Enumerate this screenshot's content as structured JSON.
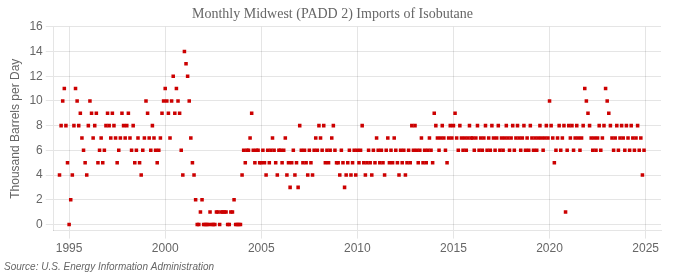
{
  "chart_data": {
    "type": "scatter",
    "title": "Monthly Midwest (PADD 2) Imports of Isobutane",
    "ylabel": "Thousand Barrels per Day",
    "annotation": "Source: U.S. Energy Information Administration",
    "color": "#cc0000",
    "marker": "square",
    "grid": true,
    "xlim": [
      1994.2,
      2025.8
    ],
    "ylim": [
      -0.5,
      16
    ],
    "xticks": [
      1995,
      2000,
      2005,
      2010,
      2015,
      2020,
      2025
    ],
    "yticks": [
      0,
      2,
      4,
      6,
      8,
      10,
      12,
      14,
      16
    ],
    "x": [
      1994.5,
      1994.5833,
      1994.6667,
      1994.75,
      1994.8333,
      1994.9167,
      1995,
      1995.0833,
      1995.1667,
      1995.25,
      1995.3333,
      1995.4167,
      1995.5,
      1995.5833,
      1995.6667,
      1995.75,
      1995.8333,
      1995.9167,
      1996,
      1996.0833,
      1996.1667,
      1996.25,
      1996.3333,
      1996.4167,
      1996.5,
      1996.5833,
      1996.6667,
      1996.75,
      1996.8333,
      1996.9167,
      1997,
      1997.0833,
      1997.1667,
      1997.25,
      1997.3333,
      1997.4167,
      1997.5,
      1997.5833,
      1997.6667,
      1997.75,
      1997.8333,
      1997.9167,
      1998,
      1998.0833,
      1998.1667,
      1998.25,
      1998.3333,
      1998.4167,
      1998.5,
      1998.5833,
      1998.6667,
      1998.75,
      1998.8333,
      1998.9167,
      1999,
      1999.0833,
      1999.1667,
      1999.25,
      1999.3333,
      1999.4167,
      1999.5,
      1999.5833,
      1999.6667,
      1999.75,
      1999.8333,
      1999.9167,
      2000,
      2000.0833,
      2000.1667,
      2000.25,
      2000.3333,
      2000.4167,
      2000.5,
      2000.5833,
      2000.6667,
      2000.75,
      2000.8333,
      2000.9167,
      2001,
      2001.0833,
      2001.1667,
      2001.25,
      2001.3333,
      2001.4167,
      2001.5,
      2001.5833,
      2001.6667,
      2001.75,
      2001.8333,
      2001.9167,
      2002,
      2002.0833,
      2002.1667,
      2002.25,
      2002.3333,
      2002.4167,
      2002.5,
      2002.5833,
      2002.6667,
      2002.75,
      2002.8333,
      2002.9167,
      2003,
      2003.0833,
      2003.1667,
      2003.25,
      2003.3333,
      2003.4167,
      2003.5,
      2003.5833,
      2003.6667,
      2003.75,
      2003.8333,
      2003.9167,
      2004,
      2004.0833,
      2004.1667,
      2004.25,
      2004.3333,
      2004.4167,
      2004.5,
      2004.5833,
      2004.6667,
      2004.75,
      2004.8333,
      2004.9167,
      2005,
      2005.0833,
      2005.1667,
      2005.25,
      2005.3333,
      2005.4167,
      2005.5,
      2005.5833,
      2005.6667,
      2005.75,
      2005.8333,
      2005.9167,
      2006,
      2006.0833,
      2006.1667,
      2006.25,
      2006.3333,
      2006.4167,
      2006.5,
      2006.5833,
      2006.6667,
      2006.75,
      2006.8333,
      2006.9167,
      2007,
      2007.0833,
      2007.1667,
      2007.25,
      2007.3333,
      2007.4167,
      2007.5,
      2007.5833,
      2007.6667,
      2007.75,
      2007.8333,
      2007.9167,
      2008,
      2008.0833,
      2008.1667,
      2008.25,
      2008.3333,
      2008.4167,
      2008.5,
      2008.5833,
      2008.6667,
      2008.75,
      2008.8333,
      2008.9167,
      2009,
      2009.0833,
      2009.1667,
      2009.25,
      2009.3333,
      2009.4167,
      2009.5,
      2009.5833,
      2009.6667,
      2009.75,
      2009.8333,
      2009.9167,
      2010,
      2010.0833,
      2010.1667,
      2010.25,
      2010.3333,
      2010.4167,
      2010.5,
      2010.5833,
      2010.6667,
      2010.75,
      2010.8333,
      2010.9167,
      2011,
      2011.0833,
      2011.1667,
      2011.25,
      2011.3333,
      2011.4167,
      2011.5,
      2011.5833,
      2011.6667,
      2011.75,
      2011.8333,
      2011.9167,
      2012,
      2012.0833,
      2012.1667,
      2012.25,
      2012.3333,
      2012.4167,
      2012.5,
      2012.5833,
      2012.6667,
      2012.75,
      2012.8333,
      2012.9167,
      2013,
      2013.0833,
      2013.1667,
      2013.25,
      2013.3333,
      2013.4167,
      2013.5,
      2013.5833,
      2013.6667,
      2013.75,
      2013.8333,
      2013.9167,
      2014,
      2014.0833,
      2014.1667,
      2014.25,
      2014.3333,
      2014.4167,
      2014.5,
      2014.5833,
      2014.6667,
      2014.75,
      2014.8333,
      2014.9167,
      2015,
      2015.0833,
      2015.1667,
      2015.25,
      2015.3333,
      2015.4167,
      2015.5,
      2015.5833,
      2015.6667,
      2015.75,
      2015.8333,
      2015.9167,
      2016,
      2016.0833,
      2016.1667,
      2016.25,
      2016.3333,
      2016.4167,
      2016.5,
      2016.5833,
      2016.6667,
      2016.75,
      2016.8333,
      2016.9167,
      2017,
      2017.0833,
      2017.1667,
      2017.25,
      2017.3333,
      2017.4167,
      2017.5,
      2017.5833,
      2017.6667,
      2017.75,
      2017.8333,
      2017.9167,
      2018,
      2018.0833,
      2018.1667,
      2018.25,
      2018.3333,
      2018.4167,
      2018.5,
      2018.5833,
      2018.6667,
      2018.75,
      2018.8333,
      2018.9167,
      2019,
      2019.0833,
      2019.1667,
      2019.25,
      2019.3333,
      2019.4167,
      2019.5,
      2019.5833,
      2019.6667,
      2019.75,
      2019.8333,
      2019.9167,
      2020,
      2020.0833,
      2020.1667,
      2020.25,
      2020.3333,
      2020.4167,
      2020.5,
      2020.5833,
      2020.6667,
      2020.75,
      2020.8333,
      2020.9167,
      2021,
      2021.0833,
      2021.1667,
      2021.25,
      2021.3333,
      2021.4167,
      2021.5,
      2021.5833,
      2021.6667,
      2021.75,
      2021.8333,
      2021.9167,
      2022,
      2022.0833,
      2022.1667,
      2022.25,
      2022.3333,
      2022.4167,
      2022.5,
      2022.5833,
      2022.6667,
      2022.75,
      2022.8333,
      2022.9167,
      2023,
      2023.0833,
      2023.1667,
      2023.25,
      2023.3333,
      2023.4167,
      2023.5,
      2023.5833,
      2023.6667,
      2023.75,
      2023.8333,
      2023.9167,
      2024,
      2024.0833,
      2024.1667,
      2024.25,
      2024.3333,
      2024.4167,
      2024.5,
      2024.5833,
      2024.6667,
      2024.75,
      2024.8333,
      2024.9167
    ],
    "values": [
      4,
      8,
      10,
      11,
      8,
      5,
      0,
      2,
      4,
      8,
      11,
      10,
      8,
      9,
      7,
      6,
      5,
      4,
      8,
      10,
      9,
      7,
      8,
      9,
      5,
      6,
      7,
      5,
      6,
      8,
      9,
      8,
      7,
      9,
      8,
      7,
      5,
      6,
      7,
      9,
      8,
      7,
      8,
      9,
      7,
      6,
      8,
      5,
      6,
      7,
      5,
      4,
      6,
      7,
      10,
      9,
      7,
      6,
      8,
      7,
      6,
      5,
      6,
      7,
      9,
      10,
      11,
      10,
      9,
      7,
      10,
      12,
      9,
      11,
      10,
      9,
      6,
      4,
      14,
      13,
      12,
      10,
      7,
      5,
      4,
      2,
      0,
      0,
      1,
      2,
      0,
      0,
      0,
      0,
      1,
      0,
      0,
      0,
      1,
      1,
      0,
      1,
      1,
      1,
      1,
      0,
      0,
      1,
      1,
      2,
      0,
      0,
      0,
      0,
      4,
      6,
      5,
      6,
      6,
      7,
      9,
      6,
      5,
      6,
      6,
      5,
      5,
      6,
      5,
      4,
      6,
      5,
      6,
      7,
      6,
      5,
      4,
      6,
      6,
      5,
      6,
      7,
      4,
      5,
      3,
      5,
      6,
      4,
      5,
      3,
      8,
      6,
      5,
      6,
      5,
      4,
      6,
      5,
      4,
      6,
      7,
      6,
      8,
      7,
      6,
      8,
      5,
      6,
      5,
      6,
      7,
      8,
      6,
      5,
      5,
      4,
      6,
      5,
      3,
      4,
      5,
      6,
      4,
      5,
      6,
      4,
      6,
      5,
      6,
      8,
      5,
      4,
      5,
      6,
      5,
      4,
      6,
      5,
      7,
      6,
      5,
      6,
      5,
      4,
      6,
      7,
      5,
      6,
      5,
      7,
      6,
      5,
      4,
      6,
      5,
      6,
      4,
      5,
      6,
      5,
      8,
      6,
      8,
      6,
      5,
      6,
      7,
      5,
      6,
      5,
      6,
      7,
      6,
      5,
      9,
      8,
      7,
      6,
      7,
      8,
      7,
      6,
      5,
      7,
      8,
      7,
      8,
      9,
      7,
      6,
      8,
      7,
      6,
      7,
      6,
      7,
      8,
      7,
      7,
      6,
      7,
      8,
      6,
      7,
      6,
      7,
      8,
      6,
      7,
      6,
      8,
      7,
      6,
      7,
      8,
      6,
      7,
      6,
      7,
      8,
      7,
      6,
      7,
      8,
      6,
      7,
      8,
      7,
      6,
      7,
      8,
      6,
      7,
      6,
      8,
      7,
      6,
      7,
      6,
      7,
      8,
      7,
      6,
      7,
      8,
      7,
      10,
      8,
      7,
      5,
      6,
      7,
      8,
      6,
      7,
      8,
      1,
      6,
      8,
      7,
      8,
      6,
      7,
      8,
      7,
      6,
      7,
      8,
      11,
      10,
      9,
      8,
      7,
      6,
      7,
      6,
      7,
      8,
      6,
      7,
      8,
      11,
      10,
      9,
      8,
      7,
      6,
      7,
      8,
      6,
      7,
      8,
      7,
      6,
      8,
      7,
      6,
      8,
      7,
      6,
      7,
      8,
      6,
      7,
      4,
      6
    ]
  }
}
